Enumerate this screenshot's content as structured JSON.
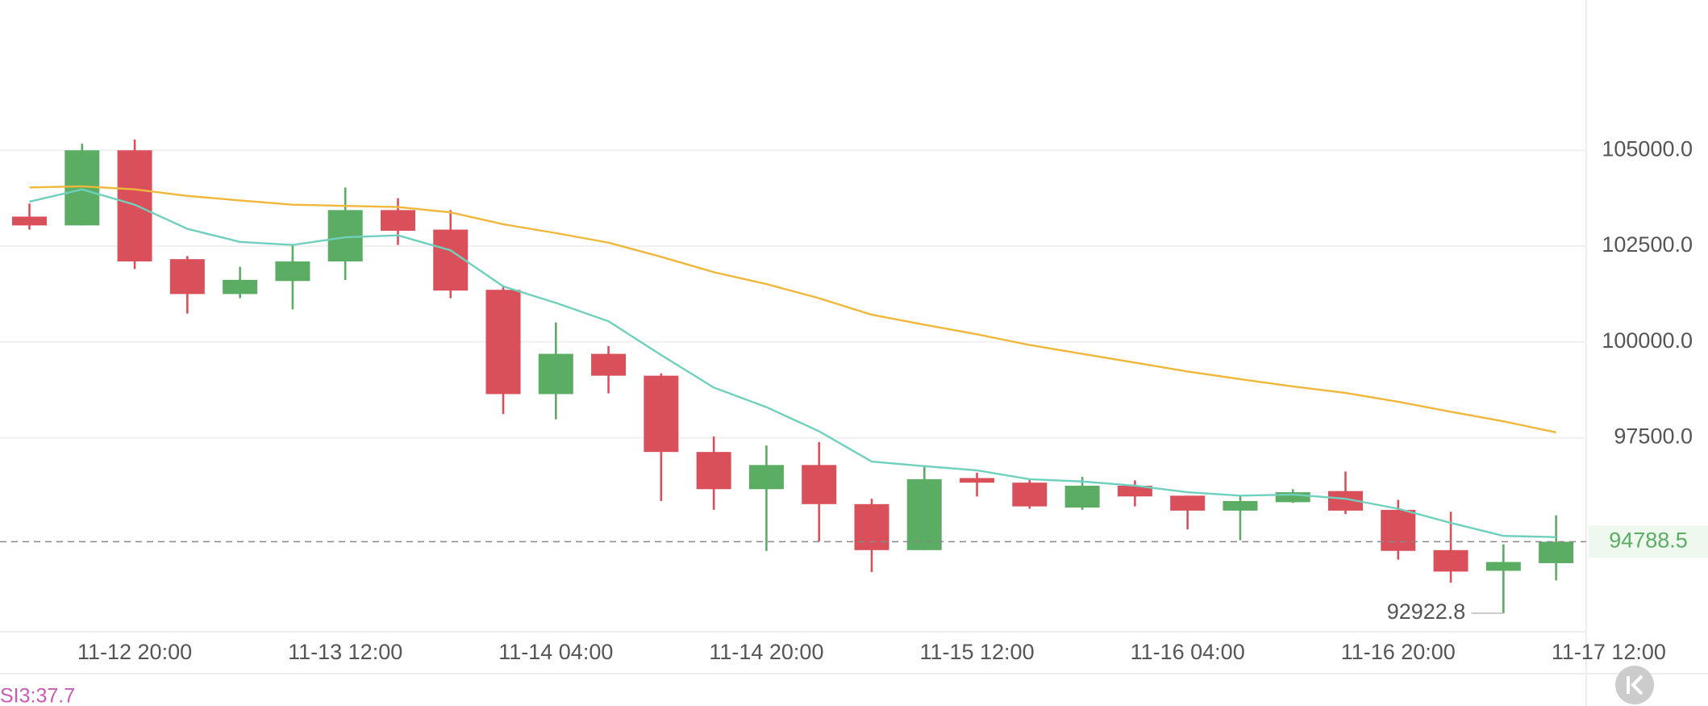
{
  "chart_data": {
    "type": "candlestick",
    "categories": [
      null,
      null,
      "11-12 20:00",
      null,
      null,
      null,
      "11-13 12:00",
      null,
      null,
      null,
      "11-14 04:00",
      null,
      null,
      null,
      "11-14 20:00",
      null,
      null,
      null,
      "11-15 12:00",
      null,
      null,
      null,
      "11-16 04:00",
      null,
      null,
      null,
      "11-16 20:00",
      null,
      null,
      null,
      "11-17 12:00"
    ],
    "open": [
      103270,
      103040,
      105000,
      102160,
      101250,
      101590,
      102100,
      103440,
      102930,
      101360,
      98640,
      99690,
      99120,
      97130,
      96160,
      96790,
      95770,
      94570,
      96450,
      96330,
      95680,
      96250,
      95990,
      95600,
      95820,
      96110,
      95620,
      94570,
      94030,
      94230,
      null
    ],
    "high": [
      103610,
      105170,
      105280,
      102240,
      101960,
      102530,
      104030,
      103750,
      103440,
      101480,
      100510,
      99890,
      99180,
      97530,
      97300,
      97390,
      95910,
      96790,
      96590,
      96420,
      96480,
      96390,
      95990,
      95990,
      96160,
      96620,
      95880,
      95570,
      94720,
      95480,
      null
    ],
    "low": [
      102930,
      103040,
      101900,
      100740,
      101140,
      100850,
      101620,
      102530,
      101140,
      98120,
      97980,
      98660,
      95850,
      95620,
      94550,
      94800,
      94000,
      94570,
      95970,
      95650,
      95620,
      95710,
      95110,
      94830,
      95800,
      95510,
      94320,
      93720,
      92922.8,
      93780,
      null
    ],
    "close": [
      103040,
      105000,
      102100,
      101250,
      101620,
      102100,
      103440,
      102900,
      101340,
      98640,
      99690,
      99120,
      97130,
      96160,
      96790,
      95770,
      94570,
      96420,
      96330,
      95710,
      96250,
      95970,
      95600,
      95850,
      96080,
      95600,
      94550,
      94010,
      94260,
      94788.5,
      null
    ],
    "up_color": "#5aad63",
    "down_color": "#d9505a",
    "lines": [
      {
        "color": "#6fd0bd",
        "values": [
          103660,
          103980,
          103580,
          102950,
          102610,
          102530,
          102730,
          102780,
          102390,
          101450,
          101020,
          100540,
          99660,
          98810,
          98300,
          97670,
          96880,
          96760,
          96650,
          96420,
          96360,
          96250,
          96080,
          95990,
          96020,
          95910,
          95650,
          95280,
          94940,
          94910,
          null
        ]
      },
      {
        "color": "#f0b73a",
        "values": [
          104030,
          104060,
          103980,
          103810,
          103690,
          103580,
          103550,
          103520,
          103380,
          103070,
          102840,
          102590,
          102220,
          101820,
          101510,
          101140,
          100710,
          100450,
          100200,
          99920,
          99690,
          99460,
          99230,
          99030,
          98840,
          98670,
          98440,
          98180,
          97930,
          97640,
          null
        ]
      }
    ],
    "ylim": [
      92440,
      108920
    ],
    "yticks": [
      {
        "value": 97500,
        "label": "97500.0"
      },
      {
        "value": 100000,
        "label": "100000.0"
      },
      {
        "value": 102500,
        "label": "102500.0"
      },
      {
        "value": 105000,
        "label": "105000.0"
      }
    ],
    "grid": true,
    "last_price": 94788.5,
    "low_label": 92922.8,
    "indicator_label": "SI3:37.7"
  }
}
